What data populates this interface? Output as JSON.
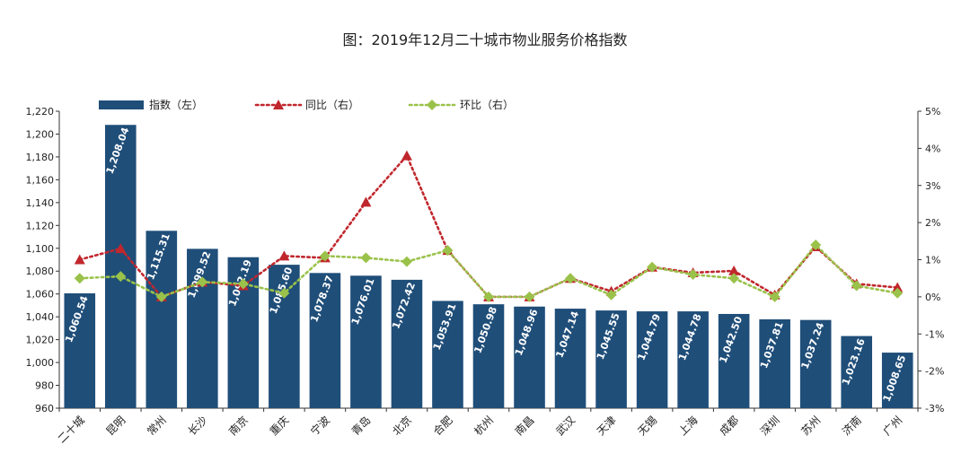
{
  "title": "图：2019年12月二十城市物业服务价格指数",
  "chart_data": {
    "type": "bar+line",
    "categories": [
      "二十城",
      "昆明",
      "常州",
      "长沙",
      "南京",
      "重庆",
      "宁波",
      "青岛",
      "北京",
      "合肥",
      "杭州",
      "南昌",
      "武汉",
      "天津",
      "无锡",
      "上海",
      "成都",
      "深圳",
      "苏州",
      "济南",
      "广州"
    ],
    "series": [
      {
        "name": "指数（左）",
        "type": "bar",
        "axis": "left",
        "values": [
          1060.54,
          1208.04,
          1115.31,
          1099.52,
          1092.19,
          1085.6,
          1078.37,
          1076.01,
          1072.42,
          1053.91,
          1050.98,
          1048.96,
          1047.14,
          1045.55,
          1044.79,
          1044.78,
          1042.5,
          1037.81,
          1037.24,
          1023.16,
          1008.65
        ],
        "labels": [
          "1,060.54",
          "1,208.04",
          "1,115.31",
          "1,099.52",
          "1,092.19",
          "1,085.60",
          "1,078.37",
          "1,076.01",
          "1,072.42",
          "1,053.91",
          "1,050.98",
          "1,048.96",
          "1,047.14",
          "1,045.55",
          "1,044.79",
          "1,044.78",
          "1,042.50",
          "1,037.81",
          "1,037.24",
          "1,023.16",
          "1,008.65"
        ]
      },
      {
        "name": "同比（右）",
        "type": "line",
        "axis": "right",
        "color": "#c0272d",
        "values": [
          1.0,
          1.3,
          0.0,
          0.4,
          0.3,
          1.1,
          1.05,
          2.55,
          3.8,
          1.25,
          0.0,
          0.0,
          0.5,
          0.15,
          0.8,
          0.65,
          0.7,
          0.05,
          1.35,
          0.35,
          0.25
        ]
      },
      {
        "name": "环比（右）",
        "type": "line",
        "axis": "right",
        "color": "#9ac24a",
        "values": [
          0.5,
          0.55,
          0.0,
          0.4,
          0.35,
          0.1,
          1.1,
          1.05,
          0.95,
          1.25,
          0.0,
          0.0,
          0.5,
          0.05,
          0.8,
          0.6,
          0.5,
          0.0,
          1.4,
          0.3,
          0.1
        ]
      }
    ],
    "y_left": {
      "min": 960,
      "max": 1220,
      "step": 20,
      "ticks": [
        "960",
        "980",
        "1,000",
        "1,020",
        "1,040",
        "1,060",
        "1,080",
        "1,100",
        "1,120",
        "1,140",
        "1,160",
        "1,180",
        "1,200",
        "1,220"
      ]
    },
    "y_right": {
      "min": -3,
      "max": 5,
      "step": 1,
      "ticks": [
        "-3%",
        "-2%",
        "-1%",
        "0%",
        "1%",
        "2%",
        "3%",
        "4%",
        "5%"
      ]
    },
    "legend": [
      {
        "label": "指数（左）",
        "style": "bar",
        "color": "#1f4e79"
      },
      {
        "label": "同比（右）",
        "style": "line-triangle",
        "color": "#c0272d"
      },
      {
        "label": "环比（右）",
        "style": "line-diamond",
        "color": "#9ac24a"
      }
    ],
    "legend_position": "top-left",
    "bar_color": "#1f4e79",
    "grid": false
  }
}
